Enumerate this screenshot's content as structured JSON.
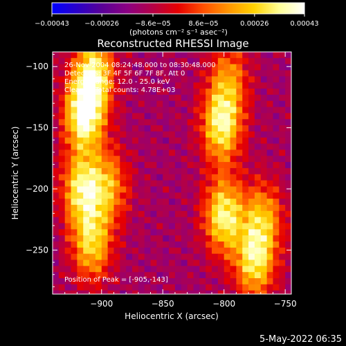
{
  "chart_data": {
    "type": "heatmap",
    "title": "Reconstructed RHESSI Image",
    "xlabel": "Heliocentric X (arcsec)",
    "ylabel": "Heliocentric Y (arcsec)",
    "xlim": [
      -940,
      -745
    ],
    "ylim": [
      -286,
      -88
    ],
    "x_ticks": [
      {
        "value": -900,
        "label": "−900"
      },
      {
        "value": -850,
        "label": "−850"
      },
      {
        "value": -800,
        "label": "−800"
      },
      {
        "value": -750,
        "label": "−750"
      }
    ],
    "y_ticks": [
      {
        "value": -100,
        "label": "−100"
      },
      {
        "value": -150,
        "label": "−150"
      },
      {
        "value": -200,
        "label": "−200"
      },
      {
        "value": -250,
        "label": "−250"
      }
    ],
    "colorbar": {
      "range": [
        -0.00043,
        0.00043
      ],
      "ticks": [
        {
          "value": -0.00043,
          "label": "−0.00043"
        },
        {
          "value": -0.00026,
          "label": "−0.00026"
        },
        {
          "value": -8.6e-05,
          "label": "−8.6e−05"
        },
        {
          "value": 8.6e-05,
          "label": "8.6e−05"
        },
        {
          "value": 0.00026,
          "label": "0.00026"
        },
        {
          "value": 0.00043,
          "label": "0.00043"
        }
      ],
      "units_label": "(photons cm⁻² s⁻¹ asec⁻²)",
      "colors": [
        "#0000ff",
        "#2a00c8",
        "#5a0096",
        "#8c0082",
        "#b40046",
        "#e60000",
        "#ff5000",
        "#ff9600",
        "#ffd200",
        "#ffff96",
        "#ffffff"
      ]
    },
    "annotations": [
      "26-Nov-2004 08:24:48.000 to 08:30:48.000",
      "Detectors: 3F 4F 5F 6F 7F 8F, Att 0",
      "Energy Range: 12.0 - 25.0 keV",
      "Clean     Total counts: 4.78E+03"
    ],
    "peak_label": "Position of Peak = [-905,-143]",
    "peak_position": [
      -905,
      -143
    ],
    "bright_regions": [
      {
        "x": -914,
        "y": -138,
        "value": 0.00043
      },
      {
        "x": -906,
        "y": -104,
        "value": 0.0003
      },
      {
        "x": -916,
        "y": -200,
        "value": 0.00031
      },
      {
        "x": -908,
        "y": -245,
        "value": 0.00026
      },
      {
        "x": -894,
        "y": -198,
        "value": 0.00018
      },
      {
        "x": -802,
        "y": -148,
        "value": 0.00034
      },
      {
        "x": -800,
        "y": -222,
        "value": 0.00035
      },
      {
        "x": -775,
        "y": -260,
        "value": 0.00029
      },
      {
        "x": -768,
        "y": -224,
        "value": 0.0002
      },
      {
        "x": -796,
        "y": -110,
        "value": 0.00014
      }
    ],
    "background_value": -0.00012,
    "timestamp": "5-May-2022 06:35"
  }
}
